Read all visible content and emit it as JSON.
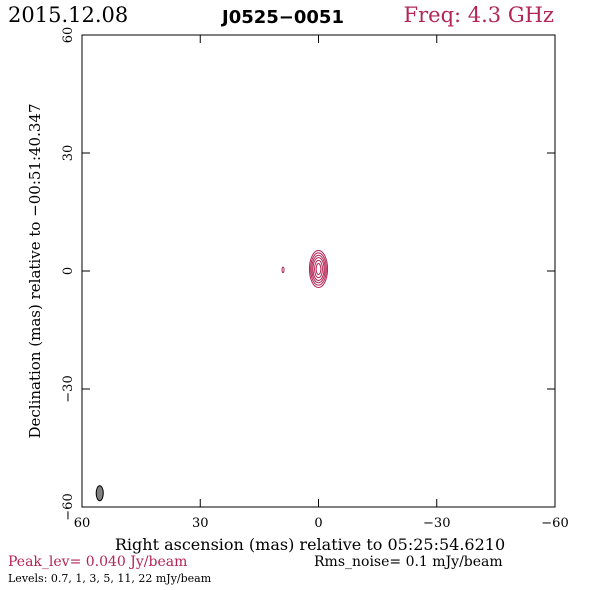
{
  "header": {
    "date": "2015.12.08",
    "source": "J0525−0051",
    "freq": "Freq: 4.3 GHz"
  },
  "colors": {
    "accent": "#b22555",
    "beam_fill": "#808080",
    "frame": "#000000"
  },
  "chart_data": {
    "type": "contour",
    "xlabel": "Right ascension (mas) relative to 05:25:54.6210",
    "ylabel": "Declination (mas) relative to −00:51:40.347",
    "xlim": [
      60,
      -60
    ],
    "ylim": [
      -60,
      60
    ],
    "x_ticks": [
      60,
      30,
      0,
      -30,
      -60
    ],
    "y_ticks": [
      60,
      30,
      0,
      -30,
      -60
    ],
    "x_tick_labels": [
      "60",
      "30",
      "0",
      "−30",
      "−60"
    ],
    "y_tick_labels": [
      "60",
      "30",
      "0",
      "−30",
      "−60"
    ],
    "grid": false,
    "contour_levels_mJy": [
      0.7,
      1,
      3,
      5,
      11,
      22
    ],
    "component": {
      "x": 0,
      "y": 0.5,
      "contours": [
        {
          "level": 0.7,
          "rx": 2.3,
          "ry": 4.7
        },
        {
          "level": 1,
          "rx": 2.0,
          "ry": 4.1
        },
        {
          "level": 3,
          "rx": 1.7,
          "ry": 3.5
        },
        {
          "level": 5,
          "rx": 1.4,
          "ry": 2.9
        },
        {
          "level": 11,
          "rx": 1.0,
          "ry": 2.2
        },
        {
          "level": 22,
          "rx": 0.6,
          "ry": 1.4
        }
      ]
    },
    "secondary_component": {
      "x": 9,
      "y": 0.3,
      "rx": 0.25,
      "ry": 0.7
    },
    "beam": {
      "x": 55.5,
      "y": -56.5,
      "rx": 0.9,
      "ry": 1.9
    }
  },
  "footer": {
    "peak": "Peak_lev=  0.040 Jy/beam",
    "rms": "Rms_noise=  0.1 mJy/beam",
    "levels": "Levels: 0.7,   1,   3,   5,  11,  22 mJy/beam"
  }
}
